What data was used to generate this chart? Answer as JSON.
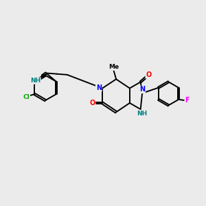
{
  "background_color": "#ebebeb",
  "bond_color": "#000000",
  "bond_width": 1.4,
  "atom_colors": {
    "N": "#0000ff",
    "O": "#ff0000",
    "Cl": "#00aa00",
    "F": "#ff00ff",
    "NH_teal": "#008080",
    "C": "#000000"
  },
  "figsize": [
    3.0,
    3.0
  ],
  "dpi": 100
}
